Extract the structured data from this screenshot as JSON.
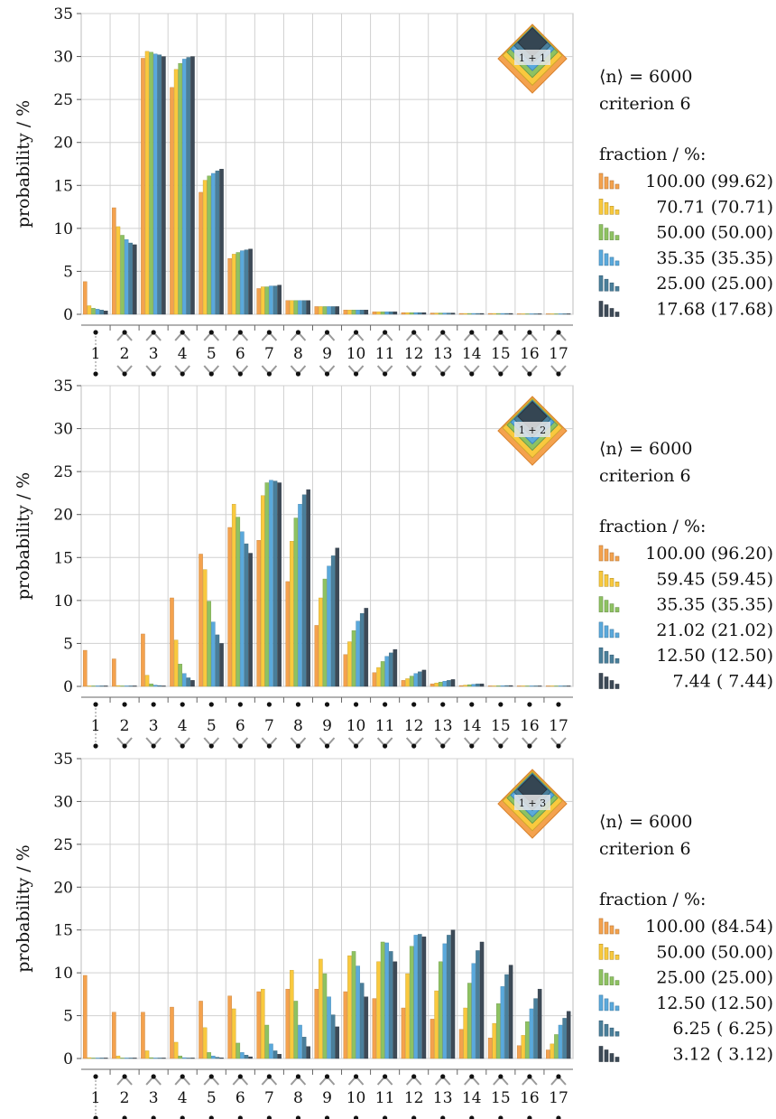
{
  "colors": [
    "#f4a24e",
    "#f9c93e",
    "#8ec262",
    "#5aa9dc",
    "#4a7f9b",
    "#3d4a57"
  ],
  "chart_data": [
    {
      "type": "bar",
      "badge": "1 + 1",
      "ylabel": "probability / %",
      "ylim": [
        0,
        35
      ],
      "yticks": [
        "0",
        "5",
        "10",
        "15",
        "20",
        "25",
        "30",
        "35"
      ],
      "grid": true,
      "categories": [
        "1",
        "2",
        "3",
        "4",
        "5",
        "6",
        "7",
        "8",
        "9",
        "10",
        "11",
        "12",
        "13",
        "14",
        "15",
        "16",
        "17"
      ],
      "info": {
        "mean": "⟨n⟩ = 6000",
        "criterion": "criterion 6",
        "legend_title": "fraction / %:"
      },
      "series": [
        {
          "name": "100.00 (99.62)",
          "values": [
            3.8,
            12.4,
            29.8,
            26.4,
            14.2,
            6.5,
            3.0,
            1.6,
            0.9,
            0.5,
            0.3,
            0.2,
            0.15,
            0.1,
            0.1,
            0.05,
            0.05
          ]
        },
        {
          "name": "70.71 (70.71)",
          "values": [
            1.0,
            10.2,
            30.6,
            28.5,
            15.6,
            7.0,
            3.2,
            1.6,
            0.9,
            0.5,
            0.3,
            0.2,
            0.15,
            0.1,
            0.1,
            0.05,
            0.05
          ]
        },
        {
          "name": "50.00 (50.00)",
          "values": [
            0.7,
            9.2,
            30.5,
            29.2,
            16.1,
            7.2,
            3.2,
            1.6,
            0.9,
            0.5,
            0.3,
            0.2,
            0.15,
            0.1,
            0.1,
            0.05,
            0.05
          ]
        },
        {
          "name": "35.35 (35.35)",
          "values": [
            0.6,
            8.7,
            30.3,
            29.7,
            16.4,
            7.4,
            3.3,
            1.6,
            0.9,
            0.5,
            0.3,
            0.2,
            0.15,
            0.1,
            0.1,
            0.05,
            0.05
          ]
        },
        {
          "name": "25.00 (25.00)",
          "values": [
            0.5,
            8.3,
            30.2,
            29.9,
            16.7,
            7.5,
            3.3,
            1.6,
            0.9,
            0.5,
            0.3,
            0.2,
            0.15,
            0.1,
            0.1,
            0.05,
            0.05
          ]
        },
        {
          "name": "17.68 (17.68)",
          "values": [
            0.4,
            8.1,
            30.0,
            30.0,
            16.9,
            7.6,
            3.4,
            1.6,
            0.9,
            0.5,
            0.3,
            0.2,
            0.15,
            0.1,
            0.1,
            0.05,
            0.05
          ]
        }
      ]
    },
    {
      "type": "bar",
      "badge": "1 + 2",
      "ylabel": "probability / %",
      "ylim": [
        0,
        35
      ],
      "yticks": [
        "0",
        "5",
        "10",
        "15",
        "20",
        "25",
        "30",
        "35"
      ],
      "grid": true,
      "categories": [
        "1",
        "2",
        "3",
        "4",
        "5",
        "6",
        "7",
        "8",
        "9",
        "10",
        "11",
        "12",
        "13",
        "14",
        "15",
        "16",
        "17"
      ],
      "info": {
        "mean": "⟨n⟩ = 6000",
        "criterion": "criterion 6",
        "legend_title": "fraction / %:"
      },
      "series": [
        {
          "name": "100.00 (96.20)",
          "values": [
            4.2,
            3.2,
            6.1,
            10.3,
            15.4,
            18.5,
            17.0,
            12.2,
            7.1,
            3.7,
            1.6,
            0.7,
            0.3,
            0.1,
            0.05,
            0.02,
            0.01
          ]
        },
        {
          "name": "59.45 (59.45)",
          "values": [
            0.05,
            0.1,
            1.3,
            5.4,
            13.6,
            21.2,
            22.2,
            16.9,
            10.3,
            5.2,
            2.2,
            0.9,
            0.4,
            0.15,
            0.05,
            0.02,
            0.01
          ]
        },
        {
          "name": "35.35 (35.35)",
          "values": [
            0.02,
            0.05,
            0.3,
            2.6,
            9.9,
            19.7,
            23.7,
            19.6,
            12.5,
            6.5,
            2.9,
            1.2,
            0.5,
            0.2,
            0.07,
            0.03,
            0.01
          ]
        },
        {
          "name": "21.02 (21.02)",
          "values": [
            0.01,
            0.02,
            0.15,
            1.5,
            7.5,
            18.0,
            24.0,
            21.2,
            14.0,
            7.6,
            3.5,
            1.5,
            0.6,
            0.25,
            0.08,
            0.03,
            0.01
          ]
        },
        {
          "name": "12.50 (12.50)",
          "values": [
            0.01,
            0.01,
            0.1,
            1.0,
            6.0,
            16.6,
            23.9,
            22.3,
            15.2,
            8.5,
            3.9,
            1.7,
            0.7,
            0.3,
            0.1,
            0.04,
            0.01
          ]
        },
        {
          "name": "7.44 ( 7.44)",
          "values": [
            0.01,
            0.01,
            0.05,
            0.7,
            5.0,
            15.5,
            23.7,
            22.9,
            16.1,
            9.1,
            4.3,
            1.9,
            0.8,
            0.3,
            0.1,
            0.04,
            0.01
          ]
        }
      ]
    },
    {
      "type": "bar",
      "badge": "1 + 3",
      "ylabel": "probability / %",
      "ylim": [
        0,
        35
      ],
      "yticks": [
        "0",
        "5",
        "10",
        "15",
        "20",
        "25",
        "30",
        "35"
      ],
      "grid": true,
      "categories": [
        "1",
        "2",
        "3",
        "4",
        "5",
        "6",
        "7",
        "8",
        "9",
        "10",
        "11",
        "12",
        "13",
        "14",
        "15",
        "16",
        "17"
      ],
      "info": {
        "mean": "⟨n⟩ = 6000",
        "criterion": "criterion 6",
        "legend_title": "fraction / %:"
      },
      "series": [
        {
          "name": "100.00 (84.54)",
          "values": [
            9.7,
            5.4,
            5.4,
            6.0,
            6.7,
            7.3,
            7.8,
            8.1,
            8.1,
            7.8,
            7.0,
            5.9,
            4.6,
            3.4,
            2.4,
            1.5,
            1.0
          ]
        },
        {
          "name": "50.00 (50.00)",
          "values": [
            0.1,
            0.3,
            0.9,
            1.9,
            3.6,
            5.8,
            8.1,
            10.3,
            11.6,
            12.0,
            11.3,
            9.9,
            7.9,
            5.9,
            4.1,
            2.7,
            1.7
          ]
        },
        {
          "name": "25.00 (25.00)",
          "values": [
            0.02,
            0.05,
            0.1,
            0.3,
            0.7,
            1.8,
            3.9,
            6.7,
            9.9,
            12.5,
            13.6,
            13.1,
            11.3,
            8.8,
            6.4,
            4.3,
            2.8
          ]
        },
        {
          "name": "12.50 (12.50)",
          "values": [
            0.01,
            0.02,
            0.05,
            0.1,
            0.3,
            0.7,
            1.7,
            3.9,
            7.2,
            10.8,
            13.5,
            14.4,
            13.4,
            11.1,
            8.4,
            5.8,
            3.9
          ]
        },
        {
          "name": "6.25 ( 6.25)",
          "values": [
            0.01,
            0.01,
            0.02,
            0.05,
            0.15,
            0.4,
            0.9,
            2.5,
            5.1,
            8.8,
            12.5,
            14.5,
            14.4,
            12.6,
            9.8,
            7.0,
            4.7
          ]
        },
        {
          "name": "3.12 ( 3.12)",
          "values": [
            0.01,
            0.01,
            0.01,
            0.02,
            0.08,
            0.2,
            0.5,
            1.4,
            3.7,
            7.2,
            11.3,
            14.2,
            15.0,
            13.6,
            10.9,
            8.1,
            5.5
          ]
        }
      ]
    }
  ]
}
